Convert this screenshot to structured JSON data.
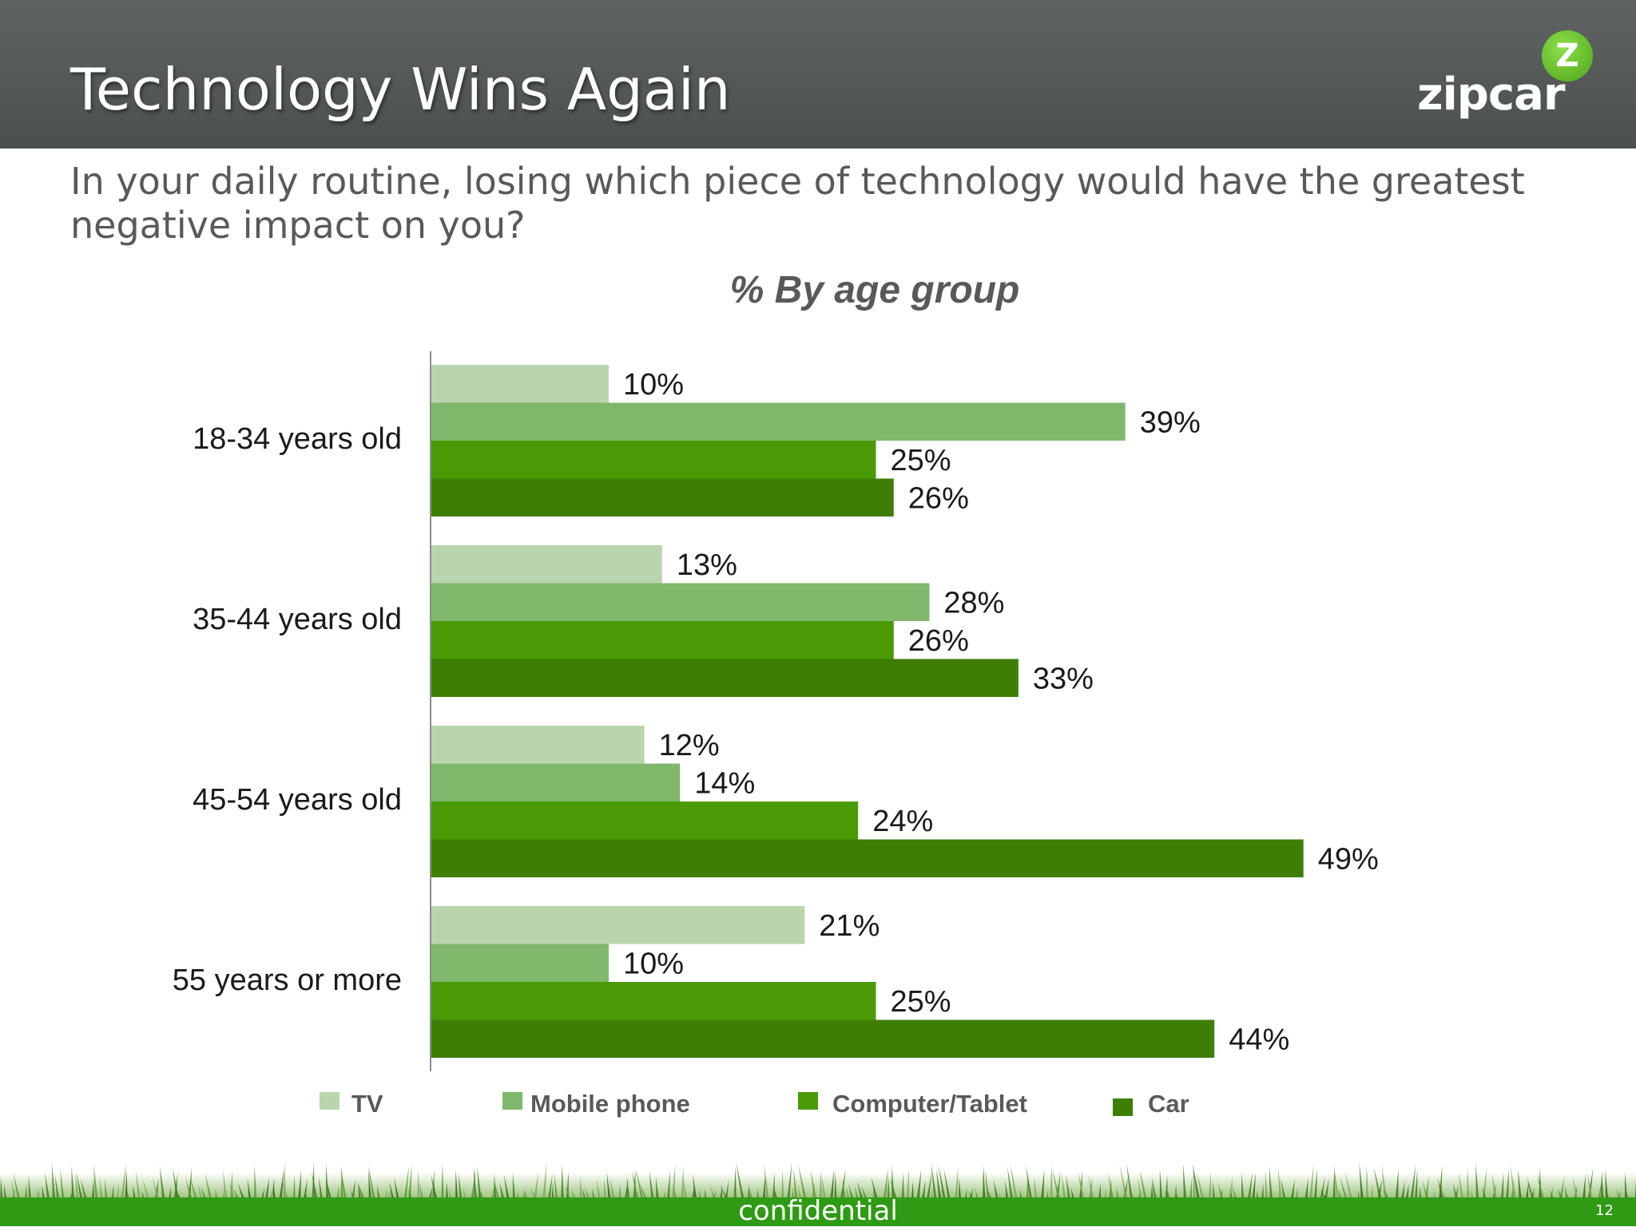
{
  "slide": {
    "title": "Technology Wins Again",
    "question": "In your daily routine, losing which piece of technology would have the greatest negative impact on you?",
    "footer": "confidential",
    "page_number": "12"
  },
  "logo": {
    "text": "zipcar",
    "badge": "Z"
  },
  "colors": {
    "header_bg": "#555a58",
    "TV": "#b9d5ae",
    "Mobile phone": "#7fb76b",
    "Computer/Tablet": "#4a9a05",
    "Car": "#3e7e04",
    "footer_green": "#2f9a14"
  },
  "chart_data": {
    "type": "bar",
    "orientation": "horizontal",
    "title": "% By age group",
    "categories": [
      "18-34 years old",
      "35-44 years old",
      "45-54 years old",
      "55 years or more"
    ],
    "series": [
      {
        "name": "TV",
        "values": [
          10,
          13,
          12,
          21
        ]
      },
      {
        "name": "Mobile phone",
        "values": [
          39,
          28,
          14,
          10
        ]
      },
      {
        "name": "Computer/Tablet",
        "values": [
          25,
          26,
          24,
          25
        ]
      },
      {
        "name": "Car",
        "values": [
          26,
          33,
          49,
          44
        ]
      }
    ],
    "value_suffix": "%",
    "legend_position": "bottom",
    "grid": false
  }
}
